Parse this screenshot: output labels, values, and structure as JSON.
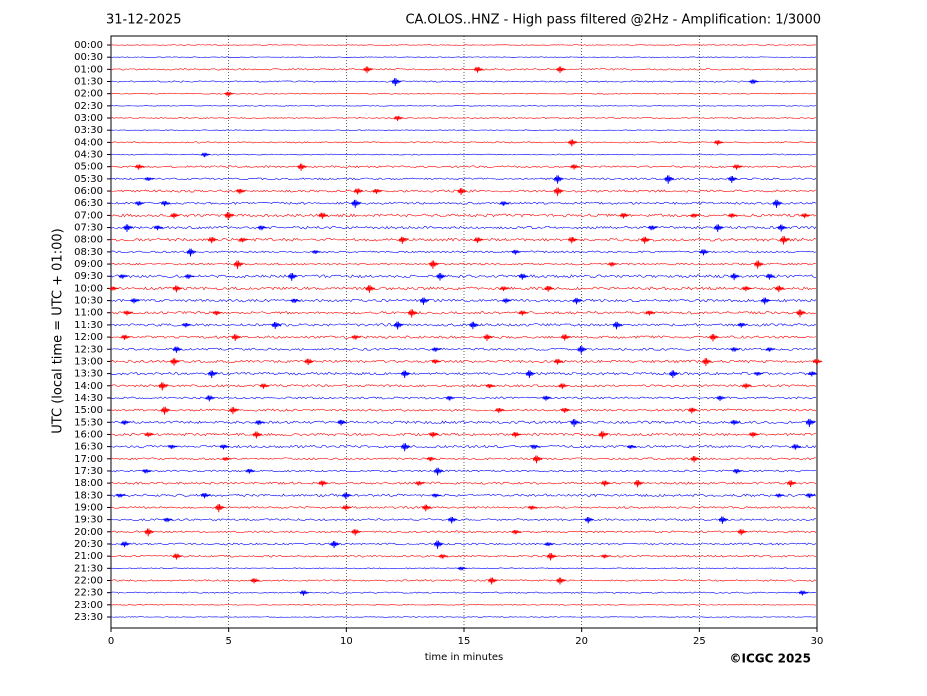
{
  "chart_data": {
    "type": "helicorder",
    "title_left": "31-12-2025",
    "title": "CA.OLOS..HNZ - High pass filtered @2Hz - Amplification: 1/3000",
    "y_label": "UTC (local time = UTC + 01:00)",
    "x_label": "time in minutes",
    "copyright": "©ICGC 2025",
    "xlim": [
      0,
      30
    ],
    "xticks": [
      0,
      5,
      10,
      15,
      20,
      25,
      30
    ],
    "grid": true,
    "row_colors": [
      "#ff0000",
      "#0000ff"
    ],
    "categories": [
      "00:00",
      "00:30",
      "01:00",
      "01:30",
      "02:00",
      "02:30",
      "03:00",
      "03:30",
      "04:00",
      "04:30",
      "05:00",
      "05:30",
      "06:00",
      "06:30",
      "07:00",
      "07:30",
      "08:00",
      "08:30",
      "09:00",
      "09:30",
      "10:00",
      "10:30",
      "11:00",
      "11:30",
      "12:00",
      "12:30",
      "13:00",
      "13:30",
      "14:00",
      "14:30",
      "15:00",
      "15:30",
      "16:00",
      "16:30",
      "17:00",
      "17:30",
      "18:00",
      "18:30",
      "19:00",
      "19:30",
      "20:00",
      "20:30",
      "21:00",
      "21:30",
      "22:00",
      "22:30",
      "23:00",
      "23:30"
    ],
    "events": [
      [],
      [],
      [
        10.9,
        15.6,
        19.1
      ],
      [
        12.1,
        27.3
      ],
      [
        5.0
      ],
      [],
      [
        12.2
      ],
      [],
      [
        19.6,
        25.8
      ],
      [
        4.0
      ],
      [
        1.2,
        8.1,
        19.7,
        26.6
      ],
      [
        1.6,
        19.0,
        23.7,
        26.4
      ],
      [
        5.5,
        10.5,
        11.3,
        14.9,
        19.0
      ],
      [
        1.2,
        2.3,
        10.4,
        16.7,
        28.3
      ],
      [
        2.7,
        5.0,
        9.0,
        21.8,
        24.8,
        26.4,
        29.5
      ],
      [
        0.7,
        2.0,
        6.4,
        23.0,
        25.8,
        28.5
      ],
      [
        4.3,
        5.6,
        12.4,
        15.6,
        19.6,
        22.7,
        28.6
      ],
      [
        3.4,
        8.7,
        17.2,
        25.2
      ],
      [
        5.4,
        13.7,
        21.3,
        27.5
      ],
      [
        0.5,
        3.3,
        7.7,
        14.0,
        17.5,
        26.5,
        28.0
      ],
      [
        0.1,
        2.8,
        11.0,
        16.7,
        18.6,
        27.0,
        28.4
      ],
      [
        1.0,
        7.8,
        13.3,
        16.8,
        19.8,
        27.8
      ],
      [
        0.7,
        4.5,
        12.8,
        17.5,
        22.9,
        29.3
      ],
      [
        3.2,
        7.0,
        12.2,
        15.4,
        21.5,
        26.8
      ],
      [
        0.6,
        5.3,
        10.4,
        16.0,
        19.3,
        25.6
      ],
      [
        2.8,
        13.8,
        20.0,
        26.5,
        28.0
      ],
      [
        2.7,
        8.4,
        13.8,
        19.0,
        25.3,
        30.0
      ],
      [
        4.3,
        12.5,
        17.8,
        23.9,
        27.5,
        29.8
      ],
      [
        2.2,
        6.5,
        16.1,
        19.2,
        27.0
      ],
      [
        4.2,
        14.4,
        18.5,
        25.9
      ],
      [
        2.3,
        5.2,
        16.5,
        19.3,
        24.7
      ],
      [
        0.6,
        6.3,
        9.8,
        19.7,
        26.5,
        29.7
      ],
      [
        1.6,
        6.2,
        13.7,
        17.2,
        20.9,
        27.3
      ],
      [
        2.6,
        4.8,
        12.5,
        18.0,
        22.1,
        29.1
      ],
      [
        4.9,
        13.6,
        18.1,
        24.8
      ],
      [
        1.5,
        5.9,
        13.9,
        26.6
      ],
      [
        9.0,
        13.1,
        21.0,
        22.4,
        28.9
      ],
      [
        0.4,
        4.0,
        10.0,
        13.8,
        28.4,
        29.7
      ],
      [
        4.6,
        10.0,
        13.4,
        17.9
      ],
      [
        2.4,
        14.5,
        20.3,
        26.0
      ],
      [
        1.6,
        10.4,
        17.2,
        26.8
      ],
      [
        0.6,
        9.5,
        13.9,
        18.6
      ],
      [
        2.8,
        14.1,
        18.7,
        21.0
      ],
      [
        14.9
      ],
      [
        6.1,
        16.2,
        19.1
      ],
      [
        8.2,
        29.4
      ],
      [],
      []
    ]
  }
}
